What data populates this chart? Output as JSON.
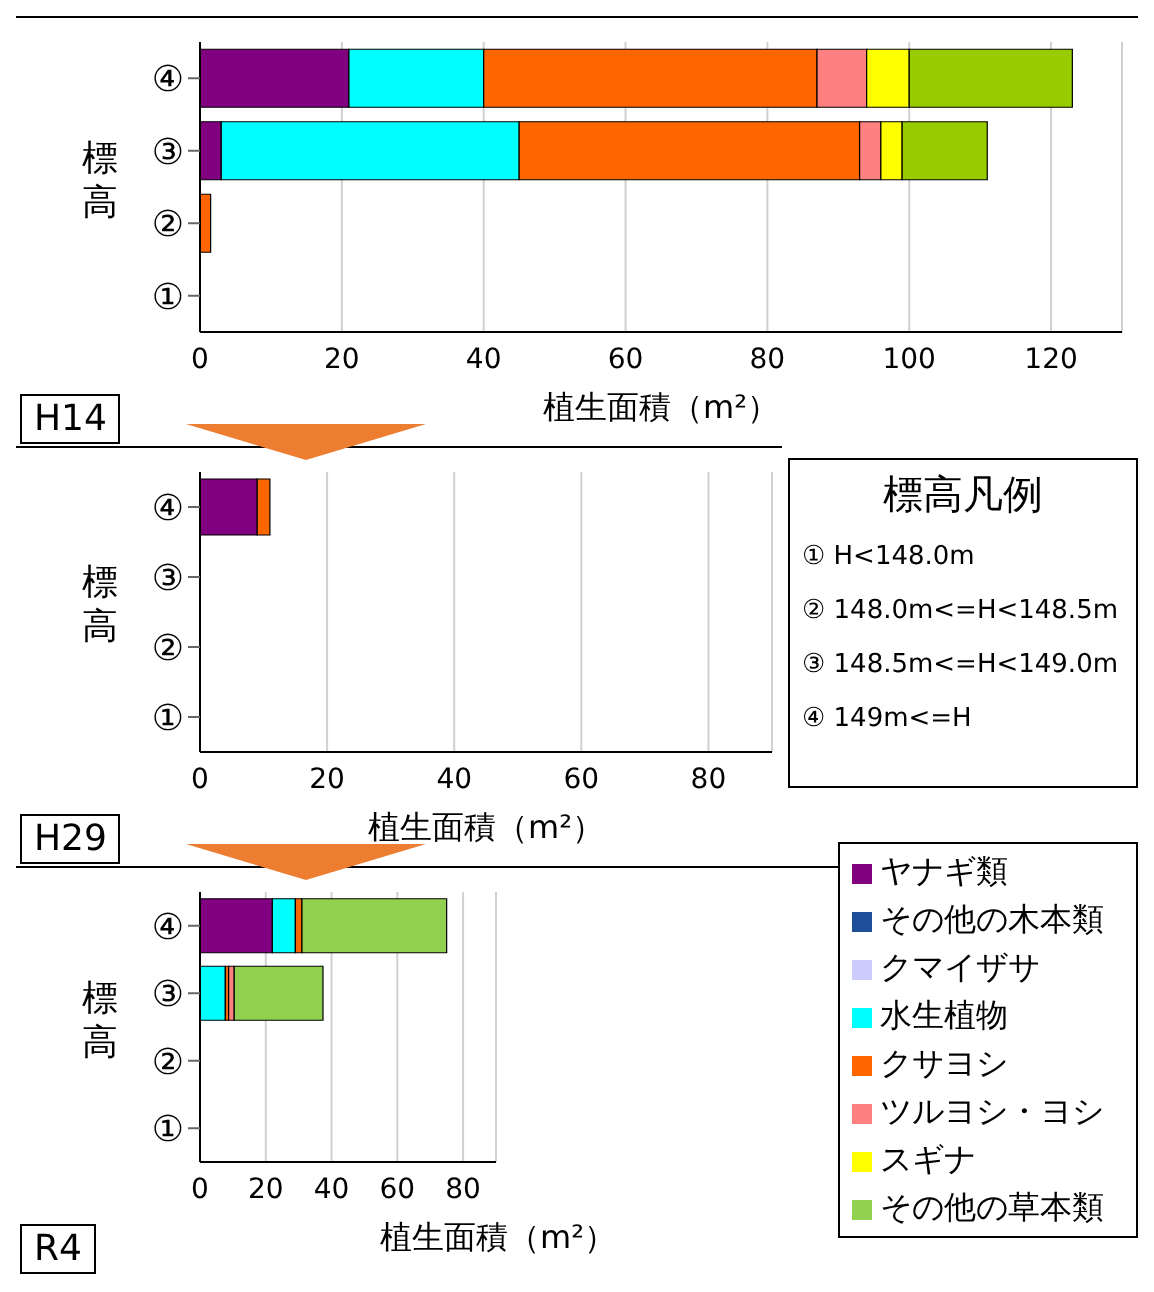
{
  "chart_data": [
    {
      "type": "bar",
      "orientation": "horizontal",
      "stacked": true,
      "title": "H14",
      "xlabel": "植生面積（m²）",
      "ylabel": "標高",
      "categories": [
        "④",
        "③",
        "②",
        "①"
      ],
      "xlim": [
        0,
        130
      ],
      "xticks": [
        0,
        20,
        40,
        60,
        80,
        100,
        120
      ],
      "grid": "x",
      "legend": false,
      "series": [
        {
          "color": "#800080",
          "values": [
            21,
            3,
            null,
            null
          ]
        },
        {
          "color": "#00ffff",
          "values": [
            19,
            42,
            null,
            null
          ]
        },
        {
          "color": "#ff6600",
          "values": [
            47,
            48,
            1.5,
            null
          ]
        },
        {
          "color": "#ff8080",
          "values": [
            7,
            3,
            null,
            null
          ]
        },
        {
          "color": "#ffff00",
          "values": [
            6,
            3,
            null,
            null
          ]
        },
        {
          "color": "#99cc00",
          "values": [
            23,
            12,
            null,
            null
          ]
        }
      ]
    },
    {
      "type": "bar",
      "orientation": "horizontal",
      "stacked": true,
      "title": "H29",
      "xlabel": "植生面積（m²）",
      "ylabel": "標高",
      "categories": [
        "④",
        "③",
        "②",
        "①"
      ],
      "xlim": [
        0,
        90
      ],
      "xticks": [
        0,
        20,
        40,
        60,
        80
      ],
      "grid": "x",
      "legend": false,
      "series": [
        {
          "color": "#800080",
          "values": [
            9,
            null,
            null,
            null
          ]
        },
        {
          "color": "#ff6600",
          "values": [
            2,
            null,
            null,
            null
          ]
        }
      ]
    },
    {
      "type": "other",
      "title": "標高凡例",
      "annotations": [
        "① H<148.0m",
        "② 148.0m<=H<148.5m",
        "③ 148.5m<=H<149.0m",
        "④ 149m<=H"
      ]
    },
    {
      "type": "bar",
      "orientation": "horizontal",
      "stacked": true,
      "title": "R4",
      "xlabel": "植生面積（m²）",
      "ylabel": "標高",
      "categories": [
        "④",
        "③",
        "②",
        "①"
      ],
      "xlim": [
        0,
        90
      ],
      "xticks": [
        0,
        20,
        40,
        60,
        80
      ],
      "grid": "x",
      "legend": "right",
      "series": [
        {
          "name": "ヤナギ類",
          "color": "#800080",
          "values": [
            22,
            null,
            null,
            null
          ]
        },
        {
          "name": "その他の木本類",
          "color": "#1f4e99",
          "values": [
            null,
            null,
            null,
            null
          ]
        },
        {
          "name": "クマイザサ",
          "color": "#ccccff",
          "values": [
            null,
            null,
            null,
            null
          ]
        },
        {
          "name": "水生植物",
          "color": "#00ffff",
          "values": [
            7,
            7.7,
            null,
            null
          ]
        },
        {
          "name": "クサヨシ",
          "color": "#ff6600",
          "values": [
            2,
            1,
            null,
            null
          ]
        },
        {
          "name": "ツルヨシ・ヨシ",
          "color": "#ff8080",
          "values": [
            null,
            1.7,
            null,
            null
          ]
        },
        {
          "name": "スギナ",
          "color": "#ffff00",
          "values": [
            null,
            null,
            null,
            null
          ]
        },
        {
          "name": "その他の草本類",
          "color": "#92d050",
          "values": [
            44,
            27,
            null,
            null
          ]
        }
      ]
    }
  ]
}
